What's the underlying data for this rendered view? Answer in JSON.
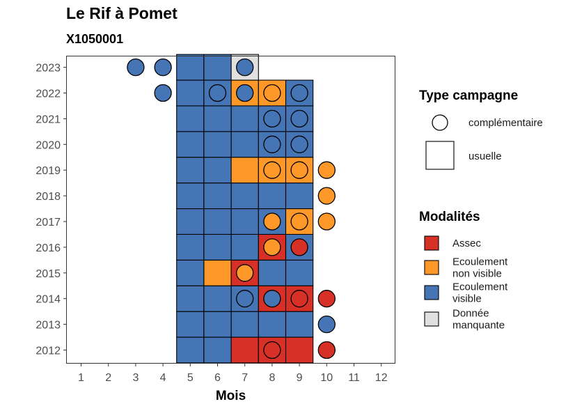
{
  "chart_data": {
    "type": "heatmap",
    "title": "Le Rif à Pomet",
    "subtitle": "X1050001",
    "xlabel": "Mois",
    "ylabel": "",
    "x": [
      1,
      2,
      3,
      4,
      5,
      6,
      7,
      8,
      9,
      10,
      11,
      12
    ],
    "y": [
      2012,
      2013,
      2014,
      2015,
      2016,
      2017,
      2018,
      2019,
      2020,
      2021,
      2022,
      2023
    ],
    "grid": false,
    "legend_position": "right",
    "colors": {
      "Assec": "#d73027",
      "Ecoulement non visible": "#fe9929",
      "Ecoulement visible": "#4575b4",
      "Donnée manquante": "#e0e0e0"
    },
    "campaigns_usuelle": [
      {
        "year": 2012,
        "month": 5,
        "modalite": "Ecoulement visible"
      },
      {
        "year": 2012,
        "month": 6,
        "modalite": "Ecoulement visible"
      },
      {
        "year": 2012,
        "month": 7,
        "modalite": "Assec"
      },
      {
        "year": 2012,
        "month": 8,
        "modalite": "Assec"
      },
      {
        "year": 2012,
        "month": 9,
        "modalite": "Assec"
      },
      {
        "year": 2013,
        "month": 5,
        "modalite": "Ecoulement visible"
      },
      {
        "year": 2013,
        "month": 6,
        "modalite": "Ecoulement visible"
      },
      {
        "year": 2013,
        "month": 7,
        "modalite": "Ecoulement visible"
      },
      {
        "year": 2013,
        "month": 8,
        "modalite": "Ecoulement visible"
      },
      {
        "year": 2013,
        "month": 9,
        "modalite": "Ecoulement visible"
      },
      {
        "year": 2014,
        "month": 5,
        "modalite": "Ecoulement visible"
      },
      {
        "year": 2014,
        "month": 6,
        "modalite": "Ecoulement visible"
      },
      {
        "year": 2014,
        "month": 7,
        "modalite": "Ecoulement visible"
      },
      {
        "year": 2014,
        "month": 8,
        "modalite": "Assec"
      },
      {
        "year": 2014,
        "month": 9,
        "modalite": "Assec"
      },
      {
        "year": 2015,
        "month": 5,
        "modalite": "Ecoulement visible"
      },
      {
        "year": 2015,
        "month": 6,
        "modalite": "Ecoulement non visible"
      },
      {
        "year": 2015,
        "month": 7,
        "modalite": "Assec"
      },
      {
        "year": 2015,
        "month": 8,
        "modalite": "Ecoulement visible"
      },
      {
        "year": 2015,
        "month": 9,
        "modalite": "Ecoulement visible"
      },
      {
        "year": 2016,
        "month": 5,
        "modalite": "Ecoulement visible"
      },
      {
        "year": 2016,
        "month": 6,
        "modalite": "Ecoulement visible"
      },
      {
        "year": 2016,
        "month": 7,
        "modalite": "Ecoulement visible"
      },
      {
        "year": 2016,
        "month": 8,
        "modalite": "Assec"
      },
      {
        "year": 2016,
        "month": 9,
        "modalite": "Ecoulement visible"
      },
      {
        "year": 2017,
        "month": 5,
        "modalite": "Ecoulement visible"
      },
      {
        "year": 2017,
        "month": 6,
        "modalite": "Ecoulement visible"
      },
      {
        "year": 2017,
        "month": 7,
        "modalite": "Ecoulement visible"
      },
      {
        "year": 2017,
        "month": 8,
        "modalite": "Ecoulement visible"
      },
      {
        "year": 2017,
        "month": 9,
        "modalite": "Ecoulement non visible"
      },
      {
        "year": 2018,
        "month": 5,
        "modalite": "Ecoulement visible"
      },
      {
        "year": 2018,
        "month": 6,
        "modalite": "Ecoulement visible"
      },
      {
        "year": 2018,
        "month": 7,
        "modalite": "Ecoulement visible"
      },
      {
        "year": 2018,
        "month": 8,
        "modalite": "Ecoulement visible"
      },
      {
        "year": 2018,
        "month": 9,
        "modalite": "Ecoulement visible"
      },
      {
        "year": 2019,
        "month": 5,
        "modalite": "Ecoulement visible"
      },
      {
        "year": 2019,
        "month": 6,
        "modalite": "Ecoulement visible"
      },
      {
        "year": 2019,
        "month": 7,
        "modalite": "Ecoulement non visible"
      },
      {
        "year": 2019,
        "month": 8,
        "modalite": "Ecoulement non visible"
      },
      {
        "year": 2019,
        "month": 9,
        "modalite": "Ecoulement non visible"
      },
      {
        "year": 2020,
        "month": 5,
        "modalite": "Ecoulement visible"
      },
      {
        "year": 2020,
        "month": 6,
        "modalite": "Ecoulement visible"
      },
      {
        "year": 2020,
        "month": 7,
        "modalite": "Ecoulement visible"
      },
      {
        "year": 2020,
        "month": 8,
        "modalite": "Ecoulement visible"
      },
      {
        "year": 2020,
        "month": 9,
        "modalite": "Ecoulement visible"
      },
      {
        "year": 2021,
        "month": 5,
        "modalite": "Ecoulement visible"
      },
      {
        "year": 2021,
        "month": 6,
        "modalite": "Ecoulement visible"
      },
      {
        "year": 2021,
        "month": 7,
        "modalite": "Ecoulement visible"
      },
      {
        "year": 2021,
        "month": 8,
        "modalite": "Ecoulement visible"
      },
      {
        "year": 2021,
        "month": 9,
        "modalite": "Ecoulement visible"
      },
      {
        "year": 2022,
        "month": 5,
        "modalite": "Ecoulement visible"
      },
      {
        "year": 2022,
        "month": 6,
        "modalite": "Ecoulement visible"
      },
      {
        "year": 2022,
        "month": 7,
        "modalite": "Ecoulement non visible"
      },
      {
        "year": 2022,
        "month": 8,
        "modalite": "Ecoulement non visible"
      },
      {
        "year": 2022,
        "month": 9,
        "modalite": "Ecoulement visible"
      },
      {
        "year": 2023,
        "month": 5,
        "modalite": "Ecoulement visible"
      },
      {
        "year": 2023,
        "month": 6,
        "modalite": "Ecoulement visible"
      },
      {
        "year": 2023,
        "month": 7,
        "modalite": "Donnée manquante"
      }
    ],
    "campaigns_complementaire": [
      {
        "year": 2012,
        "month": 8,
        "modalite": "Assec"
      },
      {
        "year": 2012,
        "month": 10,
        "modalite": "Assec"
      },
      {
        "year": 2013,
        "month": 10,
        "modalite": "Ecoulement visible"
      },
      {
        "year": 2014,
        "month": 7,
        "modalite": "Ecoulement visible"
      },
      {
        "year": 2014,
        "month": 8,
        "modalite": "Ecoulement visible"
      },
      {
        "year": 2014,
        "month": 9,
        "modalite": "Assec"
      },
      {
        "year": 2014,
        "month": 10,
        "modalite": "Assec"
      },
      {
        "year": 2015,
        "month": 7,
        "modalite": "Ecoulement non visible"
      },
      {
        "year": 2016,
        "month": 8,
        "modalite": "Ecoulement non visible"
      },
      {
        "year": 2016,
        "month": 9,
        "modalite": "Assec"
      },
      {
        "year": 2017,
        "month": 8,
        "modalite": "Ecoulement non visible"
      },
      {
        "year": 2017,
        "month": 9,
        "modalite": "Ecoulement non visible"
      },
      {
        "year": 2017,
        "month": 10,
        "modalite": "Ecoulement non visible"
      },
      {
        "year": 2018,
        "month": 10,
        "modalite": "Ecoulement non visible"
      },
      {
        "year": 2019,
        "month": 8,
        "modalite": "Ecoulement non visible"
      },
      {
        "year": 2019,
        "month": 9,
        "modalite": "Ecoulement non visible"
      },
      {
        "year": 2019,
        "month": 10,
        "modalite": "Ecoulement non visible"
      },
      {
        "year": 2020,
        "month": 8,
        "modalite": "Ecoulement visible"
      },
      {
        "year": 2020,
        "month": 9,
        "modalite": "Ecoulement visible"
      },
      {
        "year": 2021,
        "month": 8,
        "modalite": "Ecoulement visible"
      },
      {
        "year": 2021,
        "month": 9,
        "modalite": "Ecoulement visible"
      },
      {
        "year": 2022,
        "month": 4,
        "modalite": "Ecoulement visible"
      },
      {
        "year": 2022,
        "month": 6,
        "modalite": "Ecoulement visible"
      },
      {
        "year": 2022,
        "month": 7,
        "modalite": "Ecoulement visible"
      },
      {
        "year": 2022,
        "month": 8,
        "modalite": "Ecoulement non visible"
      },
      {
        "year": 2022,
        "month": 9,
        "modalite": "Ecoulement visible"
      },
      {
        "year": 2023,
        "month": 3,
        "modalite": "Ecoulement visible"
      },
      {
        "year": 2023,
        "month": 4,
        "modalite": "Ecoulement visible"
      },
      {
        "year": 2023,
        "month": 7,
        "modalite": "Ecoulement visible"
      }
    ],
    "legend": {
      "type_title": "Type campagne",
      "type_items": [
        {
          "key": "complementaire",
          "label": "complémentaire",
          "shape": "circle"
        },
        {
          "key": "usuelle",
          "label": "usuelle",
          "shape": "square"
        }
      ],
      "modalites_title": "Modalités",
      "modalites_items": [
        {
          "key": "Assec",
          "lines": [
            "Assec"
          ]
        },
        {
          "key": "Ecoulement non visible",
          "lines": [
            "Ecoulement",
            "non visible"
          ]
        },
        {
          "key": "Ecoulement visible",
          "lines": [
            "Ecoulement",
            "visible"
          ]
        },
        {
          "key": "Donnée manquante",
          "lines": [
            "Donnée",
            "manquante"
          ]
        }
      ]
    }
  }
}
